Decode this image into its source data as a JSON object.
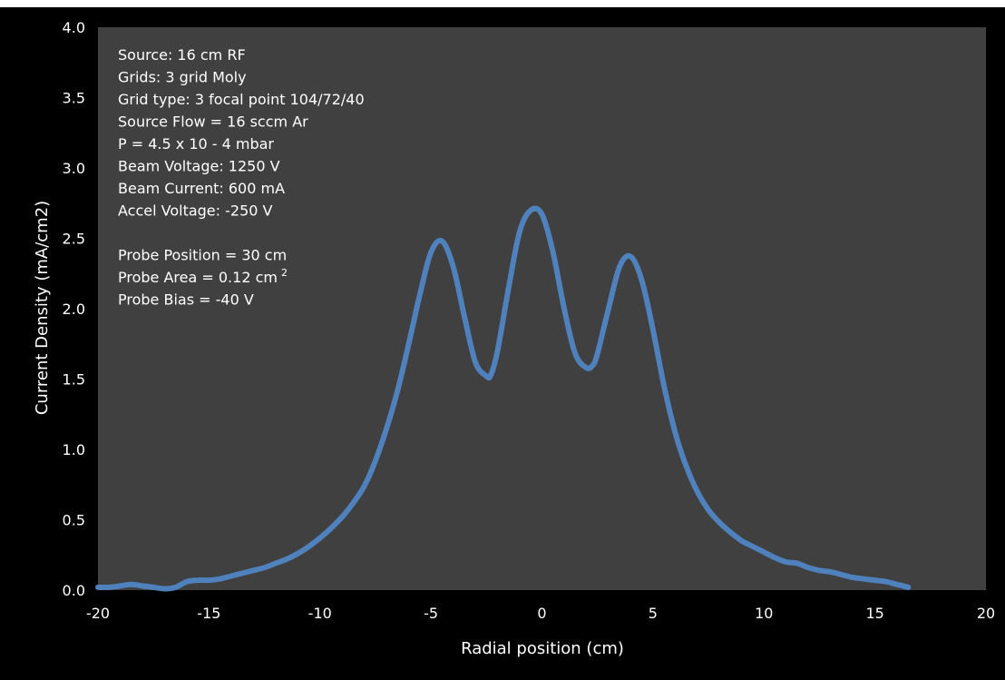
{
  "colors": {
    "page_background": "#000000",
    "plot_background": "#404040",
    "frame_top_strip": "#ffffff",
    "series_line": "#4f81bd",
    "text": "#ffffff"
  },
  "chart_data": {
    "type": "line",
    "title": "",
    "xlabel": "Radial position (cm)",
    "ylabel": "Current Density (mA/cm2)",
    "xlim": [
      -20,
      20
    ],
    "ylim": [
      0,
      4.0
    ],
    "x_ticks": [
      -20,
      -15,
      -10,
      -5,
      0,
      5,
      10,
      15,
      20
    ],
    "y_ticks": [
      0.0,
      0.5,
      1.0,
      1.5,
      2.0,
      2.5,
      3.0,
      3.5,
      4.0
    ],
    "x_tick_labels": [
      "-20",
      "-15",
      "-10",
      "-5",
      "0",
      "5",
      "10",
      "15",
      "20"
    ],
    "y_tick_labels": [
      "0.0",
      "0.5",
      "1.0",
      "1.5",
      "2.0",
      "2.5",
      "3.0",
      "3.5",
      "4.0"
    ],
    "grid": false,
    "legend": "none",
    "series": [
      {
        "x": [
          -20,
          -19.5,
          -19,
          -18.5,
          -18,
          -17.5,
          -17,
          -16.5,
          -16,
          -15.5,
          -15,
          -14.5,
          -14,
          -13.5,
          -13,
          -12.5,
          -12,
          -11.5,
          -11,
          -10.5,
          -10,
          -9.5,
          -9,
          -8.5,
          -8,
          -7.5,
          -7,
          -6.5,
          -6,
          -5.5,
          -5,
          -4.5,
          -4,
          -3.5,
          -3,
          -2.5,
          -2.3,
          -2,
          -1.5,
          -1,
          -0.5,
          0,
          0.5,
          1,
          1.5,
          2,
          2.3,
          2.5,
          3,
          3.5,
          4,
          4.5,
          5,
          5.5,
          6,
          6.5,
          7,
          7.5,
          8,
          8.5,
          9,
          9.5,
          10,
          10.5,
          11,
          11.5,
          12,
          12.5,
          13,
          13.5,
          14,
          14.5,
          15,
          15.5,
          16,
          16.5
        ],
        "y": [
          0.02,
          0.02,
          0.03,
          0.04,
          0.03,
          0.02,
          0.01,
          0.02,
          0.06,
          0.07,
          0.07,
          0.08,
          0.1,
          0.12,
          0.14,
          0.16,
          0.19,
          0.22,
          0.26,
          0.31,
          0.37,
          0.44,
          0.52,
          0.62,
          0.74,
          0.92,
          1.15,
          1.42,
          1.75,
          2.1,
          2.4,
          2.48,
          2.3,
          1.95,
          1.62,
          1.52,
          1.53,
          1.7,
          2.15,
          2.55,
          2.7,
          2.67,
          2.4,
          2.0,
          1.68,
          1.58,
          1.6,
          1.68,
          2.0,
          2.3,
          2.37,
          2.2,
          1.85,
          1.45,
          1.12,
          0.88,
          0.7,
          0.57,
          0.48,
          0.41,
          0.35,
          0.31,
          0.27,
          0.23,
          0.2,
          0.19,
          0.16,
          0.14,
          0.13,
          0.11,
          0.09,
          0.08,
          0.07,
          0.06,
          0.04,
          0.02
        ]
      }
    ],
    "annotations": [
      "Source: 16 cm RF",
      "Grids:  3 grid  Moly",
      "Grid type:  3 focal point 104/72/40",
      "Source Flow = 16 sccm Ar",
      "P = 4.5 x 10 - 4 mbar",
      "Beam Voltage: 1250 V",
      "Beam Current:  600 mA",
      "Accel Voltage: -250 V",
      "",
      "Probe Position = 30 cm",
      "Probe Area = 0.12 cm",
      "Probe Bias = -40 V"
    ],
    "annotation_superscript": "2"
  }
}
